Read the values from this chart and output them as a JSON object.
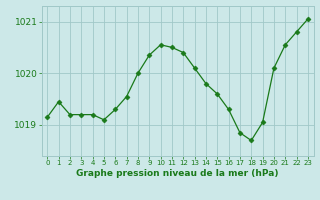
{
  "x": [
    0,
    1,
    2,
    3,
    4,
    5,
    6,
    7,
    8,
    9,
    10,
    11,
    12,
    13,
    14,
    15,
    16,
    17,
    18,
    19,
    20,
    21,
    22,
    23
  ],
  "y": [
    1019.15,
    1019.45,
    1019.2,
    1019.2,
    1019.2,
    1019.1,
    1019.3,
    1019.55,
    1020.0,
    1020.35,
    1020.55,
    1020.5,
    1020.4,
    1020.1,
    1019.8,
    1019.6,
    1019.3,
    1018.85,
    1018.7,
    1019.05,
    1020.1,
    1020.55,
    1020.8,
    1021.05
  ],
  "line_color": "#1a7a1a",
  "marker": "D",
  "marker_size": 2.5,
  "bg_color": "#cce8e8",
  "grid_color": "#a0c8c8",
  "tick_color": "#1a7a1a",
  "label_color": "#1a7a1a",
  "xlabel": "Graphe pression niveau de la mer (hPa)",
  "yticks": [
    1019,
    1020,
    1021
  ],
  "ylim": [
    1018.4,
    1021.3
  ],
  "xlim": [
    -0.5,
    23.5
  ]
}
